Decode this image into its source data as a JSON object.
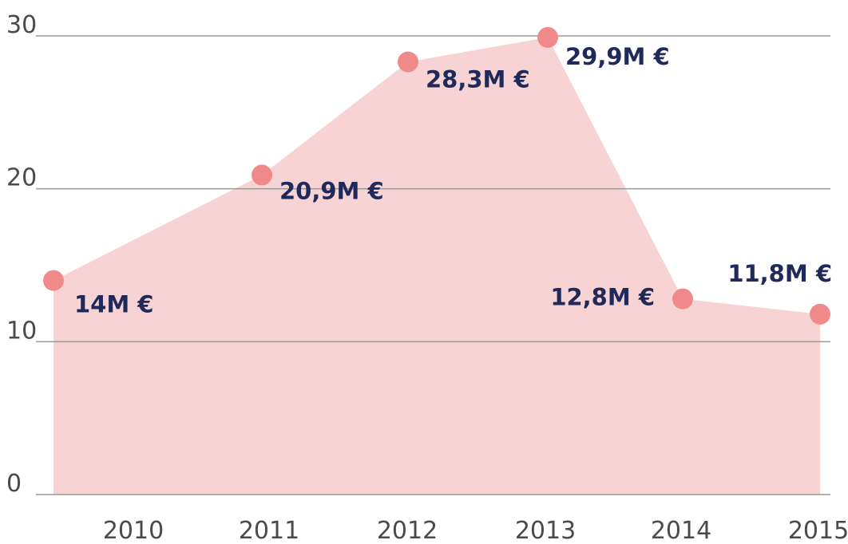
{
  "chart_data": {
    "type": "area",
    "categories": [
      "2010",
      "2011",
      "2012",
      "2013",
      "2014",
      "2015"
    ],
    "values": [
      14,
      20.9,
      28.3,
      29.9,
      12.8,
      11.8
    ],
    "value_labels": [
      "14M €",
      "20,9M €",
      "28,3M €",
      "29,9M €",
      "12,8M €",
      "11,8M €"
    ],
    "color": "#f08a8a",
    "fill": "#f8d3d3",
    "ylim": [
      0,
      30
    ],
    "yticks": [
      0,
      10,
      20,
      30
    ],
    "grid": true
  }
}
